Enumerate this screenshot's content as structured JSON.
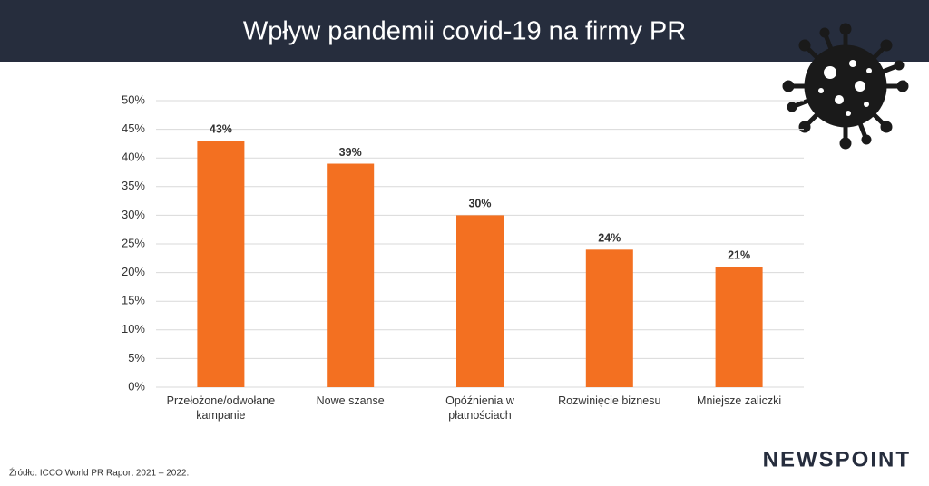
{
  "chart_data": {
    "type": "bar",
    "title": "Wpływ pandemii covid-19 na firmy PR",
    "categories": [
      "Przełożone/odwołane kampanie",
      "Nowe szanse",
      "Opóźnienia w płatnościach",
      "Rozwinięcie biznesu",
      "Mniejsze zaliczki"
    ],
    "values": [
      43,
      39,
      30,
      24,
      21
    ],
    "value_labels": [
      "43%",
      "39%",
      "30%",
      "24%",
      "21%"
    ],
    "color": "#f37021",
    "ylim": [
      0,
      50
    ],
    "yticks": [
      {
        "value": 0,
        "label": "0%"
      },
      {
        "value": 5,
        "label": "5%"
      },
      {
        "value": 10,
        "label": "10%"
      },
      {
        "value": 15,
        "label": "15%"
      },
      {
        "value": 20,
        "label": "20%"
      },
      {
        "value": 25,
        "label": "25%"
      },
      {
        "value": 30,
        "label": "30%"
      },
      {
        "value": 35,
        "label": "35%"
      },
      {
        "value": 40,
        "label": "40%"
      },
      {
        "value": 45,
        "label": "45%"
      },
      {
        "value": 50,
        "label": "50%"
      }
    ],
    "grid": true
  },
  "source": "Źródło: ICCO World PR Raport 2021 – 2022.",
  "brand": "NEWSPOINT"
}
